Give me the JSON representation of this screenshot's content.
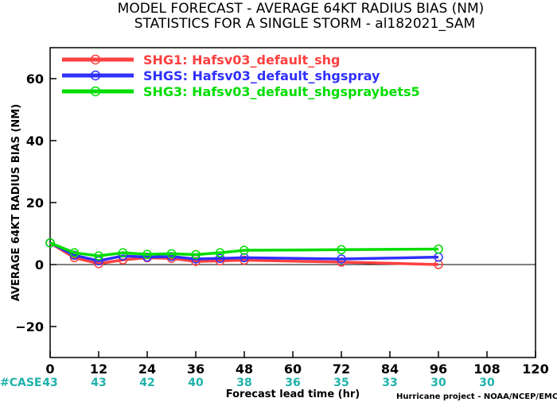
{
  "chart_data": {
    "type": "line",
    "title": "MODEL FORECAST - AVERAGE 64KT RADIUS BIAS (NM)",
    "subtitle": "STATISTICS FOR A SINGLE STORM - al182021_SAM",
    "xlabel": "Forecast lead time (hr)",
    "ylabel": "AVERAGE 64KT RADIUS BIAS (NM)",
    "xlim": [
      0,
      120
    ],
    "ylim": [
      -30,
      70
    ],
    "x_ticks": [
      0,
      12,
      24,
      36,
      48,
      60,
      72,
      84,
      96,
      108,
      120
    ],
    "y_ticks": [
      -20,
      0,
      20,
      40,
      60
    ],
    "x_tick_labels": [
      "0",
      "12",
      "24",
      "36",
      "48",
      "60",
      "72",
      "84",
      "96",
      "108",
      "120"
    ],
    "y_tick_labels": [
      "−20",
      "0",
      "20",
      "40",
      "60"
    ],
    "zero_line": true,
    "legend_position": "top-left",
    "case_label": "#CASE",
    "case_ticks": [
      0,
      12,
      24,
      36,
      48,
      60,
      72,
      84,
      96,
      108
    ],
    "cases": [
      "43",
      "43",
      "42",
      "40",
      "38",
      "36",
      "35",
      "33",
      "30",
      "30"
    ],
    "credit": "Hurricane project - NOAA/NCEP/EMC",
    "x": [
      0,
      6,
      12,
      18,
      24,
      30,
      36,
      42,
      48,
      72,
      96
    ],
    "series": [
      {
        "name": "SHG1: Hafsv03_default_shg",
        "color": "#ff4040",
        "values": [
          7.0,
          2.2,
          0.3,
          1.5,
          2.2,
          2.0,
          1.0,
          1.2,
          1.4,
          0.8,
          0.0
        ]
      },
      {
        "name": "SHGS: Hafsv03_default_shgspray",
        "color": "#3030ff",
        "values": [
          7.0,
          3.0,
          1.2,
          2.8,
          2.4,
          2.6,
          1.8,
          2.0,
          2.2,
          1.8,
          2.4
        ]
      },
      {
        "name": "SHG3: Hafsv03_default_shgspraybets5",
        "color": "#00dd00",
        "values": [
          7.0,
          3.8,
          2.8,
          3.8,
          3.3,
          3.5,
          3.2,
          3.8,
          4.6,
          4.8,
          5.0
        ]
      }
    ]
  }
}
